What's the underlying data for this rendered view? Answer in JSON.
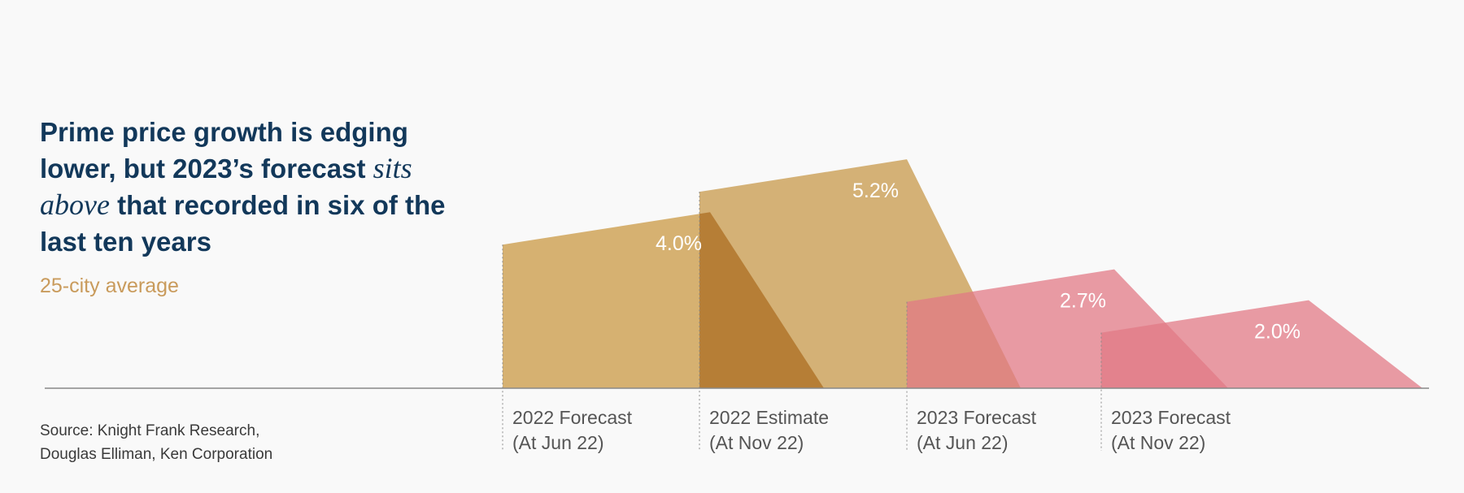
{
  "header": {
    "title_part1": "Prime price growth is edging lower, but 2023’s forecast",
    "title_emph": "sits above",
    "title_part2": "that recorded in six of the last ten years",
    "subtitle": "25-city average"
  },
  "footer": {
    "source_line1": "Source: Knight Frank Research,",
    "source_line2": "Douglas Elliman, Ken Corporation"
  },
  "colors": {
    "gold": "#d2a862",
    "gold_overlap": "#b67e33",
    "pink": "#e27a85",
    "axis": "#888888"
  },
  "chart_data": {
    "type": "bar",
    "categories": [
      [
        "2022 Forecast",
        "(At Jun 22)"
      ],
      [
        "2022 Estimate",
        "(At Nov 22)"
      ],
      [
        "2023 Forecast",
        "(At Jun 22)"
      ],
      [
        "2023 Forecast",
        "(At Nov 22)"
      ]
    ],
    "values": [
      4.0,
      5.2,
      2.7,
      2.0
    ],
    "value_labels": [
      "4.0%",
      "5.2%",
      "2.7%",
      "2.0%"
    ],
    "series_colors": [
      "gold",
      "gold",
      "pink",
      "pink"
    ],
    "ylim": [
      0,
      6
    ],
    "grid": false,
    "legend": "none"
  }
}
